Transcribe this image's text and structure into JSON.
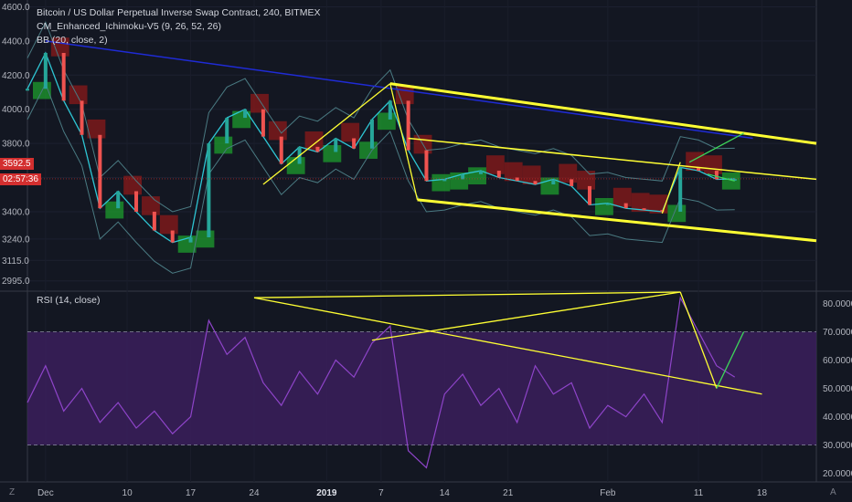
{
  "header": {
    "symbol_line": "Bitcoin / US Dollar Perpetual Inverse Swap Contract, 240, BITMEX",
    "indicator_1": "CM_Enhanced_Ichimoku-V5 (9, 26, 52, 26)",
    "indicator_2": "BB (20, close, 2)",
    "rsi_label": "RSI (14, close)"
  },
  "price_tags": {
    "last_price": "3592.5",
    "countdown": "02:57:36"
  },
  "corner_labels": {
    "zoom": "Z",
    "auto": "A"
  },
  "colors": {
    "background": "#131722",
    "price_line": "#2ec5d3",
    "candle_up": "#26a69a",
    "candle_down": "#ef5350",
    "cloud_bull": "#1e9e2e",
    "cloud_bear": "#8b1a1a",
    "bollinger": "#4a7a82",
    "trend_yellow": "#ffff33",
    "trend_blue": "#1f2bd6",
    "trend_green": "#3dd65a",
    "rsi_line": "#8e44c9",
    "rsi_band": "#3b1f5c"
  },
  "chart_data": [
    {
      "type": "line",
      "title": "Bitcoin / US Dollar Perpetual Inverse Swap Contract, 240, BITMEX",
      "x_tick_labels": [
        "Dec",
        "10",
        "17",
        "24",
        "2019",
        "7",
        "14",
        "21",
        "Feb",
        "11",
        "18"
      ],
      "y_tick_labels": [
        "2995.0",
        "3115.0",
        "3240.0",
        "3400.0",
        "3600.0",
        "3800.0",
        "4000.0",
        "4200.0",
        "4400.0",
        "4600.0"
      ],
      "y_ticks": [
        2995,
        3115,
        3240,
        3400,
        3600,
        3800,
        4000,
        4200,
        4400,
        4600
      ],
      "ylim": [
        2940,
        4640
      ],
      "x_range": [
        "2018-11-29",
        "2019-02-24"
      ],
      "last_price": 3592.5,
      "series": [
        {
          "x": [
            "2018-11-29",
            "2018-12-01",
            "2018-12-03",
            "2018-12-05",
            "2018-12-07",
            "2018-12-09",
            "2018-12-11",
            "2018-12-13",
            "2018-12-15",
            "2018-12-17",
            "2018-12-19",
            "2018-12-21",
            "2018-12-23",
            "2018-12-25",
            "2018-12-27",
            "2018-12-29",
            "2018-12-31",
            "2019-01-02",
            "2019-01-04",
            "2019-01-06",
            "2019-01-08",
            "2019-01-10",
            "2019-01-12",
            "2019-01-14",
            "2019-01-16",
            "2019-01-18",
            "2019-01-20",
            "2019-01-22",
            "2019-01-24",
            "2019-01-26",
            "2019-01-28",
            "2019-01-30",
            "2019-02-01",
            "2019-02-03",
            "2019-02-05",
            "2019-02-07",
            "2019-02-09",
            "2019-02-11",
            "2019-02-13",
            "2019-02-15"
          ],
          "values": [
            4120,
            4330,
            4050,
            3850,
            3420,
            3520,
            3400,
            3290,
            3220,
            3250,
            3800,
            3950,
            4000,
            3840,
            3680,
            3780,
            3750,
            3830,
            3770,
            3940,
            4050,
            3760,
            3580,
            3590,
            3620,
            3640,
            3600,
            3580,
            3560,
            3590,
            3550,
            3440,
            3450,
            3420,
            3410,
            3400,
            3660,
            3640,
            3590,
            3592
          ]
        }
      ]
    },
    {
      "type": "line",
      "title": "RSI (14, close)",
      "y_tick_labels": [
        "20.0000",
        "30.0000",
        "40.0000",
        "50.0000",
        "60.0000",
        "70.0000",
        "80.0000"
      ],
      "y_ticks": [
        20,
        30,
        40,
        50,
        60,
        70,
        80
      ],
      "ylim": [
        17,
        84
      ],
      "bands": [
        30,
        70
      ],
      "series": [
        {
          "x": [
            "2018-11-29",
            "2018-12-01",
            "2018-12-03",
            "2018-12-05",
            "2018-12-07",
            "2018-12-09",
            "2018-12-11",
            "2018-12-13",
            "2018-12-15",
            "2018-12-17",
            "2018-12-19",
            "2018-12-21",
            "2018-12-23",
            "2018-12-25",
            "2018-12-27",
            "2018-12-29",
            "2018-12-31",
            "2019-01-02",
            "2019-01-04",
            "2019-01-06",
            "2019-01-08",
            "2019-01-10",
            "2019-01-12",
            "2019-01-14",
            "2019-01-16",
            "2019-01-18",
            "2019-01-20",
            "2019-01-22",
            "2019-01-24",
            "2019-01-26",
            "2019-01-28",
            "2019-01-30",
            "2019-02-01",
            "2019-02-03",
            "2019-02-05",
            "2019-02-07",
            "2019-02-09",
            "2019-02-11",
            "2019-02-13",
            "2019-02-15"
          ],
          "values": [
            45,
            58,
            42,
            50,
            38,
            45,
            36,
            42,
            34,
            40,
            74,
            62,
            68,
            52,
            44,
            56,
            48,
            60,
            54,
            66,
            72,
            28,
            22,
            48,
            55,
            44,
            50,
            38,
            58,
            48,
            52,
            36,
            44,
            40,
            48,
            38,
            82,
            70,
            58,
            54
          ]
        }
      ]
    }
  ]
}
